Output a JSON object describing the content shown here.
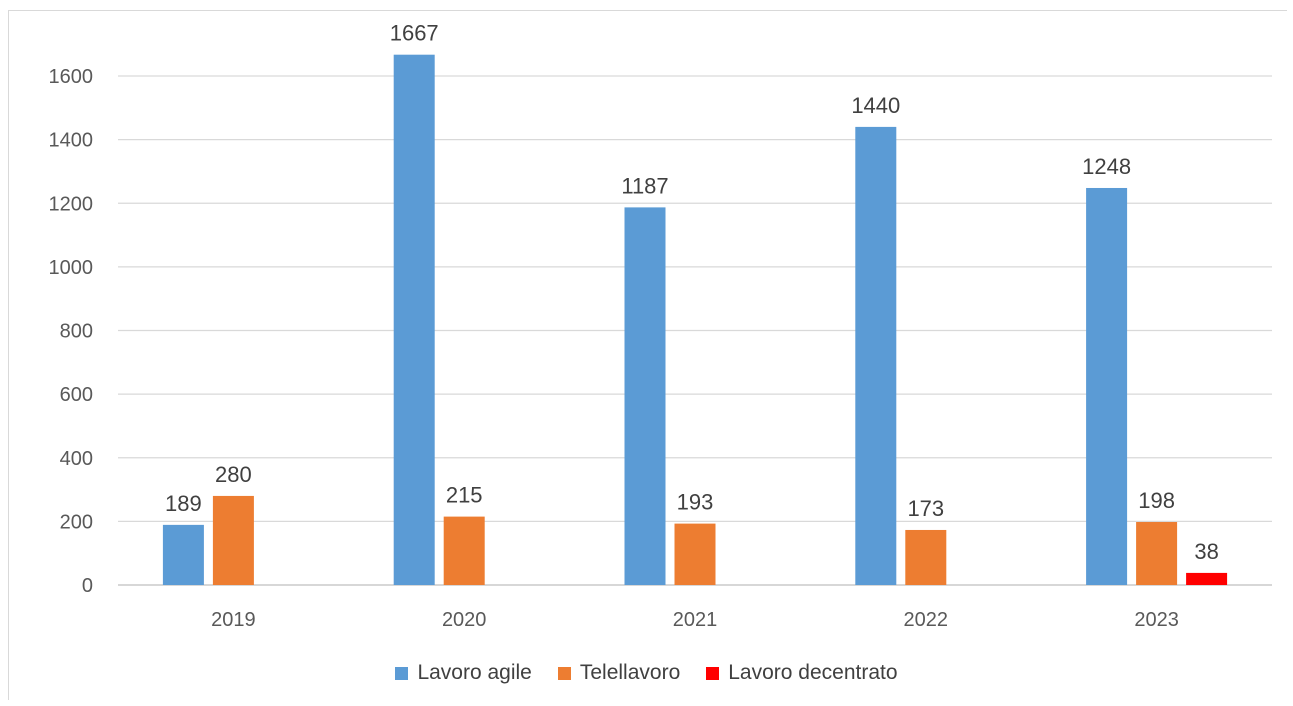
{
  "chart_data": {
    "type": "bar",
    "categories": [
      "2019",
      "2020",
      "2021",
      "2022",
      "2023"
    ],
    "series": [
      {
        "name": "Lavoro agile",
        "color": "#5b9bd5",
        "values": [
          189,
          1667,
          1187,
          1440,
          1248
        ]
      },
      {
        "name": "Telellavoro",
        "color": "#ed7d31",
        "values": [
          280,
          215,
          193,
          173,
          198
        ]
      },
      {
        "name": "Lavoro decentrato",
        "color": "#ff0000",
        "values": [
          null,
          null,
          null,
          null,
          38
        ]
      }
    ],
    "y_ticks": [
      "0",
      "200",
      "400",
      "600",
      "800",
      "1000",
      "1200",
      "1400",
      "1600"
    ],
    "ylim": [
      0,
      1600
    ],
    "grid": true,
    "legend_position": "bottom",
    "title": "",
    "xlabel": "",
    "ylabel": ""
  }
}
